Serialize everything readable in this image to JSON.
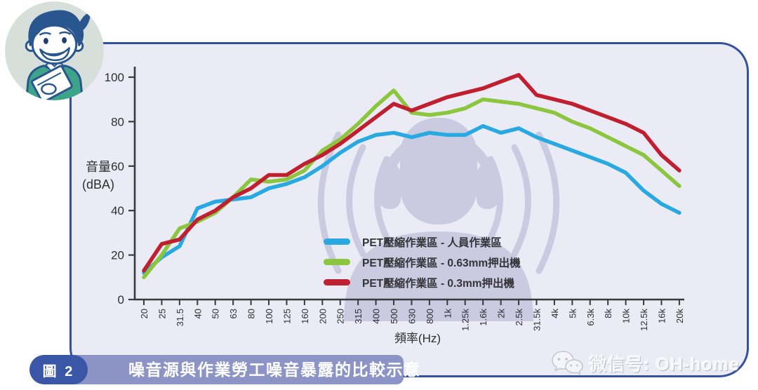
{
  "avatar": {
    "icon": "cartoon-man-with-clipboard"
  },
  "chart_data": {
    "type": "line",
    "title": "",
    "xlabel": "頻率(Hz)",
    "ylabel": "音量 (dBA)",
    "ylabel_lines": [
      "音量",
      "(dBA)"
    ],
    "categories": [
      "20",
      "25",
      "31.5",
      "40",
      "50",
      "63",
      "80",
      "100",
      "125",
      "160",
      "200",
      "250",
      "315",
      "400",
      "500",
      "630",
      "800",
      "1k",
      "1.25k",
      "1.6k",
      "2k",
      "2.5k",
      "31.5k",
      "4k",
      "5k",
      "6.3k",
      "8k",
      "10k",
      "12.5k",
      "16k",
      "20k"
    ],
    "yticks": [
      0,
      20,
      40,
      60,
      80,
      100
    ],
    "ylim": [
      0,
      105
    ],
    "grid": false,
    "legend_position": "inside-bottom-center",
    "axis_color": "#3A3A3C",
    "series": [
      {
        "name": "PET壓縮作業區 - 人員作業區",
        "color": "#29A9E1",
        "values": [
          12,
          19,
          24,
          41,
          44,
          45,
          46,
          50,
          52,
          55,
          60,
          66,
          71,
          74,
          75,
          73,
          75,
          74,
          74,
          78,
          75,
          77,
          73,
          70,
          67,
          64,
          61,
          57,
          49,
          43,
          39
        ]
      },
      {
        "name": "PET壓縮作業區 - 0.63mm押出機",
        "color": "#8CC63E",
        "values": [
          10,
          20,
          32,
          35,
          39,
          46,
          54,
          53,
          54,
          58,
          67,
          72,
          79,
          87,
          94,
          84,
          83,
          84,
          86,
          90,
          89,
          88,
          86,
          84,
          80,
          77,
          73,
          69,
          65,
          58,
          51
        ]
      },
      {
        "name": "PET壓縮作業區 - 0.3mm押出機",
        "color": "#BF1F2E",
        "values": [
          13,
          25,
          27,
          36,
          40,
          46,
          50,
          56,
          56,
          61,
          65,
          70,
          76,
          82,
          88,
          85,
          88,
          91,
          93,
          95,
          98,
          101,
          92,
          90,
          88,
          85,
          82,
          79,
          75,
          65,
          58
        ]
      }
    ],
    "background_figure": "person-wearing-hearing-protection-silhouette"
  },
  "caption": {
    "badge": "圖 2",
    "title": "噪音源與作業勞工噪音暴露的比較示意"
  },
  "watermark": {
    "icon": "wechat-icon",
    "text": "微信号: OH-home"
  },
  "colors": {
    "panel_bg": "#EAEBF4",
    "panel_border": "#33519C",
    "caption_badge_bg": "#3A57A7",
    "caption_bar_bg": "#8C94C6",
    "silhouette": "#C9CADF"
  }
}
